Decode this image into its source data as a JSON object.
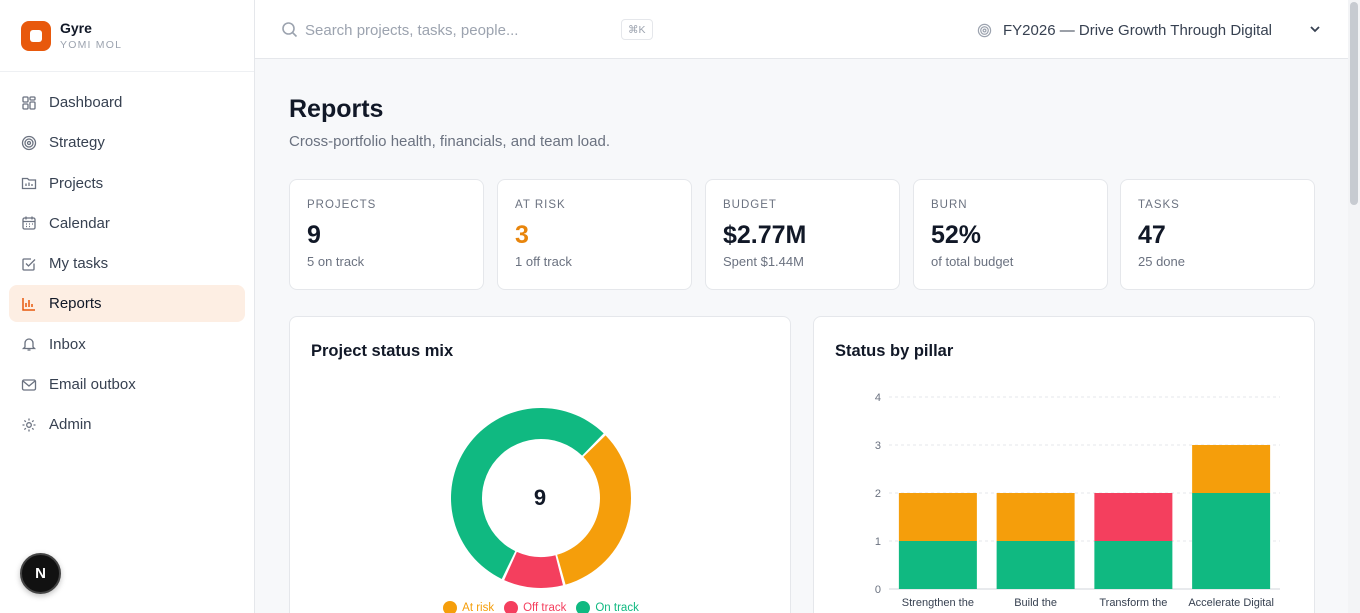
{
  "brand": {
    "name": "Gyre",
    "sub": "YOMI MOL"
  },
  "sidebar": {
    "items": [
      {
        "label": "Dashboard",
        "icon": "grid-icon",
        "active": false
      },
      {
        "label": "Strategy",
        "icon": "target-icon",
        "active": false
      },
      {
        "label": "Projects",
        "icon": "folder-icon",
        "active": false
      },
      {
        "label": "Calendar",
        "icon": "calendar-icon",
        "active": false
      },
      {
        "label": "My tasks",
        "icon": "checkbox-icon",
        "active": false
      },
      {
        "label": "Reports",
        "icon": "bar-chart-icon",
        "active": true
      },
      {
        "label": "Inbox",
        "icon": "bell-icon",
        "active": false
      },
      {
        "label": "Email outbox",
        "icon": "mail-icon",
        "active": false
      },
      {
        "label": "Admin",
        "icon": "gear-icon",
        "active": false
      }
    ],
    "badge": "N"
  },
  "topbar": {
    "search_placeholder": "Search projects, tasks, people...",
    "shortcut": "⌘K",
    "strategy": "FY2026 — Drive Growth Through Digital"
  },
  "page": {
    "title": "Reports",
    "subtitle": "Cross-portfolio health, financials, and team load."
  },
  "stats": [
    {
      "label": "PROJECTS",
      "value": "9",
      "sub": "5 on track"
    },
    {
      "label": "AT RISK",
      "value": "3",
      "sub": "1 off track"
    },
    {
      "label": "BUDGET",
      "value": "$2.77M",
      "sub": "Spent $1.44M"
    },
    {
      "label": "BURN",
      "value": "52%",
      "sub": "of total budget"
    },
    {
      "label": "TASKS",
      "value": "47",
      "sub": "25 done"
    }
  ],
  "colors": {
    "accent": "#e8590c",
    "at_risk": "#f59e0b",
    "off_track": "#f43f5e",
    "on_track": "#10b981",
    "warn_text": "#e8850c"
  },
  "chart_data": [
    {
      "type": "pie",
      "title": "Project status mix",
      "center_label": "9",
      "categories": [
        "At risk",
        "Off track",
        "On track"
      ],
      "values": [
        3,
        1,
        5
      ]
    },
    {
      "type": "bar",
      "stacked": true,
      "title": "Status by pillar",
      "categories": [
        "Strengthen the",
        "Build the",
        "Transform the",
        "Accelerate Digital"
      ],
      "series": [
        {
          "name": "On track",
          "values": [
            1,
            1,
            1,
            2
          ]
        },
        {
          "name": "At risk",
          "values": [
            1,
            1,
            0,
            1
          ]
        },
        {
          "name": "Off track",
          "values": [
            0,
            0,
            1,
            0
          ]
        }
      ],
      "ylim": [
        0,
        4
      ],
      "yticks": [
        "0",
        "1",
        "2",
        "3",
        "4"
      ],
      "grid": true
    }
  ]
}
